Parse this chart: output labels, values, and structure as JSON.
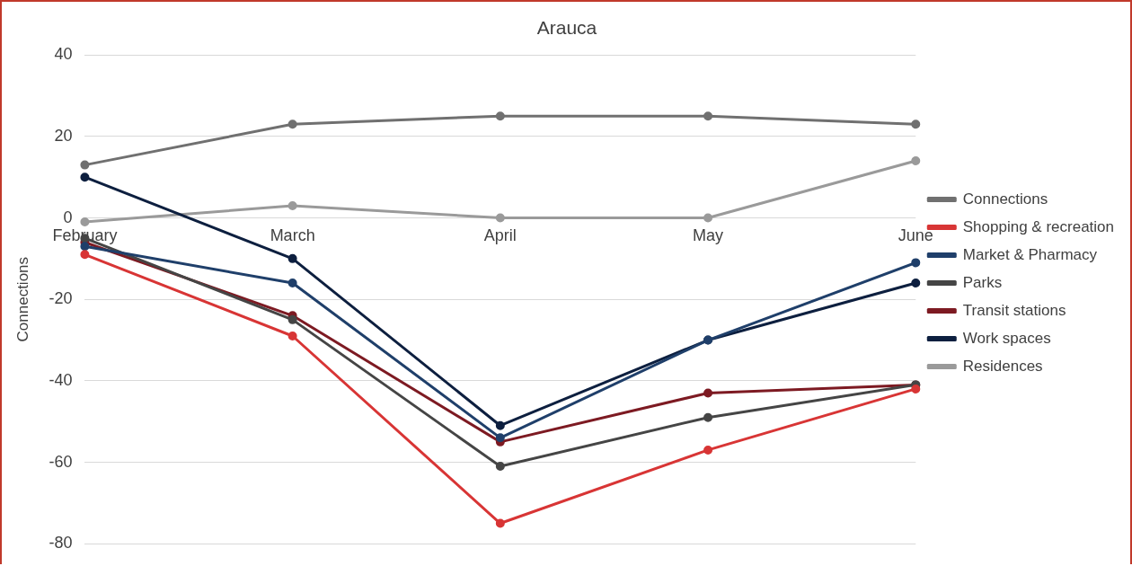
{
  "chart_data": {
    "type": "line",
    "title": "Arauca",
    "ylabel": "Connections",
    "categories": [
      "February",
      "March",
      "April",
      "May",
      "June"
    ],
    "series": [
      {
        "name": "Connections",
        "color": "#707070",
        "values": [
          13,
          23,
          25,
          25,
          23
        ]
      },
      {
        "name": "Shopping & recreation",
        "color": "#d83535",
        "values": [
          -9,
          -29,
          -75,
          -57,
          -42
        ]
      },
      {
        "name": "Market & Pharmacy",
        "color": "#1f3f6a",
        "values": [
          -7,
          -16,
          -54,
          -30,
          -11
        ]
      },
      {
        "name": "Parks",
        "color": "#454545",
        "values": [
          -5,
          -25,
          -61,
          -49,
          -41
        ]
      },
      {
        "name": "Transit stations",
        "color": "#7d1a22",
        "values": [
          -6,
          -24,
          -55,
          -43,
          -41
        ]
      },
      {
        "name": "Work spaces",
        "color": "#0d1f3f",
        "values": [
          10,
          -10,
          -51,
          -30,
          -16
        ]
      },
      {
        "name": "Residences",
        "color": "#9a9a9a",
        "values": [
          -1,
          3,
          0,
          0,
          14
        ]
      }
    ],
    "ylim": [
      -80,
      40
    ],
    "yticks": [
      -80,
      -60,
      -40,
      -20,
      0,
      20,
      40
    ],
    "grid": "y",
    "legend": "right",
    "marker": "circle",
    "line_style": "solid"
  }
}
